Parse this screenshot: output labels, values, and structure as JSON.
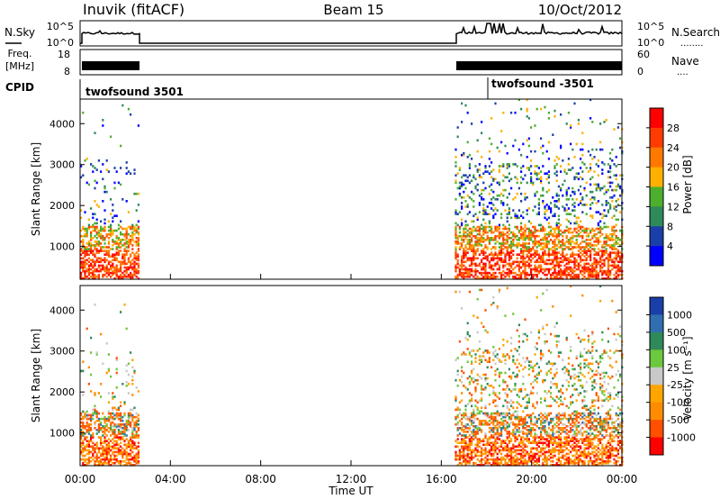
{
  "header": {
    "station": "Inuvik (fitACF)",
    "beam": "Beam 15",
    "date": "10/Oct/2012"
  },
  "top_panels": {
    "nsky": {
      "label": "N.Sky",
      "ticks": [
        "10^5",
        "10^0"
      ],
      "right_label": "N.Search",
      "right_ticks": [
        "10^5",
        "10^0"
      ],
      "dots": "........"
    },
    "freq": {
      "label_line1": "Freq.",
      "label_line2": "[MHz]",
      "ticks": [
        "18",
        "8"
      ],
      "right_label": "Nave",
      "right_ticks": [
        "60",
        "0"
      ],
      "dots": "...."
    },
    "cpid": {
      "label": "CPID",
      "programs": [
        {
          "name": "twofsound 3501",
          "start_hour": 0.0
        },
        {
          "name": "twofsound -3501",
          "start_hour": 18.0
        }
      ]
    }
  },
  "chart_data": [
    {
      "type": "heatmap",
      "title": "Power",
      "xlabel": "",
      "ylabel": "Slant Range [km]",
      "xlim_hours": [
        0,
        24
      ],
      "ylim": [
        200,
        4600
      ],
      "y_ticks": [
        1000,
        2000,
        3000,
        4000
      ],
      "colorbar": {
        "label": "Power [dB]",
        "ticks": [
          "28",
          "24",
          "20",
          "16",
          "12",
          "8",
          "4"
        ],
        "colors": [
          "#ff0000",
          "#ff3c00",
          "#ff7800",
          "#ffb000",
          "#4caf2e",
          "#2f8a5a",
          "#1a3fa8",
          "#0000ff"
        ]
      },
      "data_windows_hours": [
        [
          0.0,
          2.55
        ],
        [
          16.6,
          24.0
        ]
      ],
      "dominant_band_km": [
        200,
        1500
      ]
    },
    {
      "type": "heatmap",
      "title": "Velocity",
      "xlabel": "Time UT",
      "ylabel": "Slant Range [km]",
      "xlim_hours": [
        0,
        24
      ],
      "ylim": [
        200,
        4600
      ],
      "y_ticks": [
        1000,
        2000,
        3000,
        4000
      ],
      "colorbar": {
        "label": "Velocity [m s⁻¹]",
        "ticks": [
          "1000",
          "500",
          "100",
          "25",
          "-25",
          "-100",
          "-500",
          "-1000"
        ],
        "colors": [
          "#1a3fa8",
          "#2f6fb0",
          "#2e8a5a",
          "#6cc83c",
          "#c8c8c8",
          "#ffa500",
          "#ff8c00",
          "#ff5000",
          "#ff0000"
        ]
      },
      "data_windows_hours": [
        [
          0.0,
          2.55
        ],
        [
          16.6,
          24.0
        ]
      ],
      "x_tick_labels": [
        "00:00",
        "04:00",
        "08:00",
        "12:00",
        "16:00",
        "20:00",
        "00:00"
      ]
    }
  ]
}
